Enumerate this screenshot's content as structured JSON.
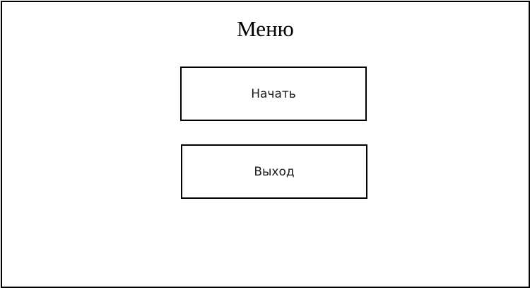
{
  "menu": {
    "title": "Меню",
    "buttons": {
      "start_label": "Начать",
      "exit_label": "Выход"
    }
  }
}
